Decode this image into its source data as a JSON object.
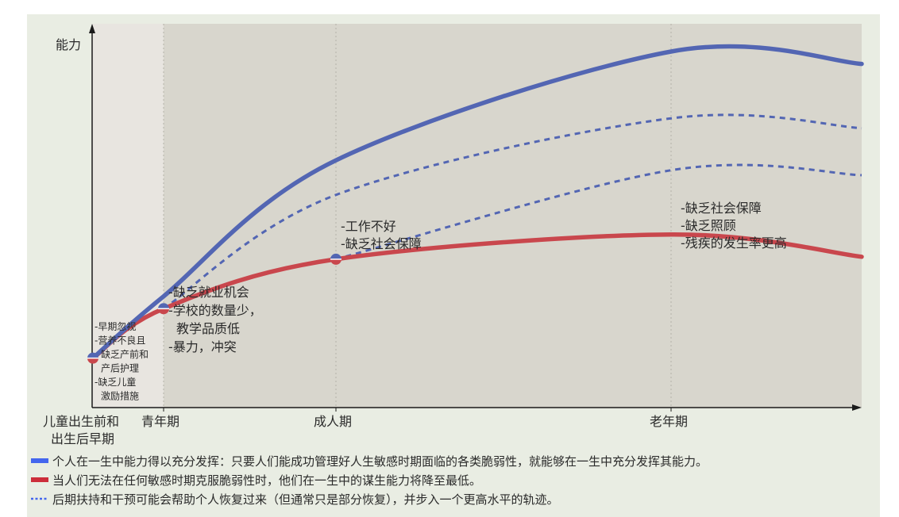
{
  "chart_data": {
    "type": "line",
    "ylabel": "能力",
    "x_stages": [
      "儿童出生前和出生后早期",
      "青年期",
      "成人期",
      "老年期"
    ],
    "series": [
      {
        "name": "个人在一生中能力得以充分发挥：只要人们能成功管理好人生敏感时期面临的各类脆弱性，就能够在一生中充分发挥其能力。",
        "color": "#5366b3",
        "style": "solid",
        "points": [
          [
            0,
            0.2
          ],
          [
            1,
            0.45
          ],
          [
            2,
            1.0
          ],
          [
            3,
            1.44
          ],
          [
            3.6,
            1.39
          ]
        ]
      },
      {
        "name": "当人们无法在任何敏感时期克服脆弱性时，他们在一生中的谋生能力将降至最低。",
        "color": "#c9474d",
        "style": "solid",
        "points": [
          [
            0,
            0.2
          ],
          [
            1,
            0.4
          ],
          [
            2,
            0.6
          ],
          [
            3,
            0.7
          ],
          [
            3.6,
            0.61
          ]
        ]
      },
      {
        "name": "后期扶持和干预可能会帮助个人恢复过来（但通常只是部分恢复），并步入一个更高水平的轨迹。",
        "color": "#5366b3",
        "style": "dashed",
        "points": [
          [
            1,
            0.4
          ],
          [
            2,
            0.86
          ],
          [
            3,
            1.17
          ],
          [
            3.6,
            1.13
          ]
        ]
      },
      {
        "name": "",
        "color": "#5366b3",
        "style": "dashed",
        "points": [
          [
            2,
            0.6
          ],
          [
            3,
            0.96
          ],
          [
            3.6,
            0.94
          ]
        ]
      }
    ],
    "annotations": {
      "early": [
        "-早期忽视",
        "-营养不良且",
        "缺乏产前和",
        "产后护理",
        "-缺乏儿童",
        "激励措施"
      ],
      "youth": [
        "-缺乏就业机会",
        "-学校的数量少，",
        "教学品质低",
        "-暴力，冲突"
      ],
      "adult": [
        "-工作不好",
        "-缺乏社会保障"
      ],
      "old": [
        "-缺乏社会保障",
        "-缺乏照顾",
        "-残疾的发生率更高"
      ]
    },
    "legend": [
      {
        "text": "个人在一生中能力得以充分发挥：只要人们能成功管理好人生敏感时期面临的各类脆弱性，就能够在一生中充分发挥其能力。",
        "color": "#4466ee",
        "style": "solid"
      },
      {
        "text": "当人们无法在任何敏感时期克服脆弱性时，他们在一生中的谋生能力将降至最低。",
        "color": "#cc2d3a",
        "style": "solid"
      },
      {
        "text": "后期扶持和干预可能会帮助个人恢复过来（但通常只是部分恢复），并步入一个更高水平的轨迹。",
        "color": "#4466ee",
        "style": "dashed"
      }
    ],
    "grid": "vertical-dotted",
    "legend_position": "bottom"
  },
  "colors": {
    "panel_bg": "#e9ede3",
    "plot_bg": "#d8d6cd",
    "early_band": "#e8e5e0",
    "blue": "#5366b3",
    "red": "#c9474d"
  }
}
